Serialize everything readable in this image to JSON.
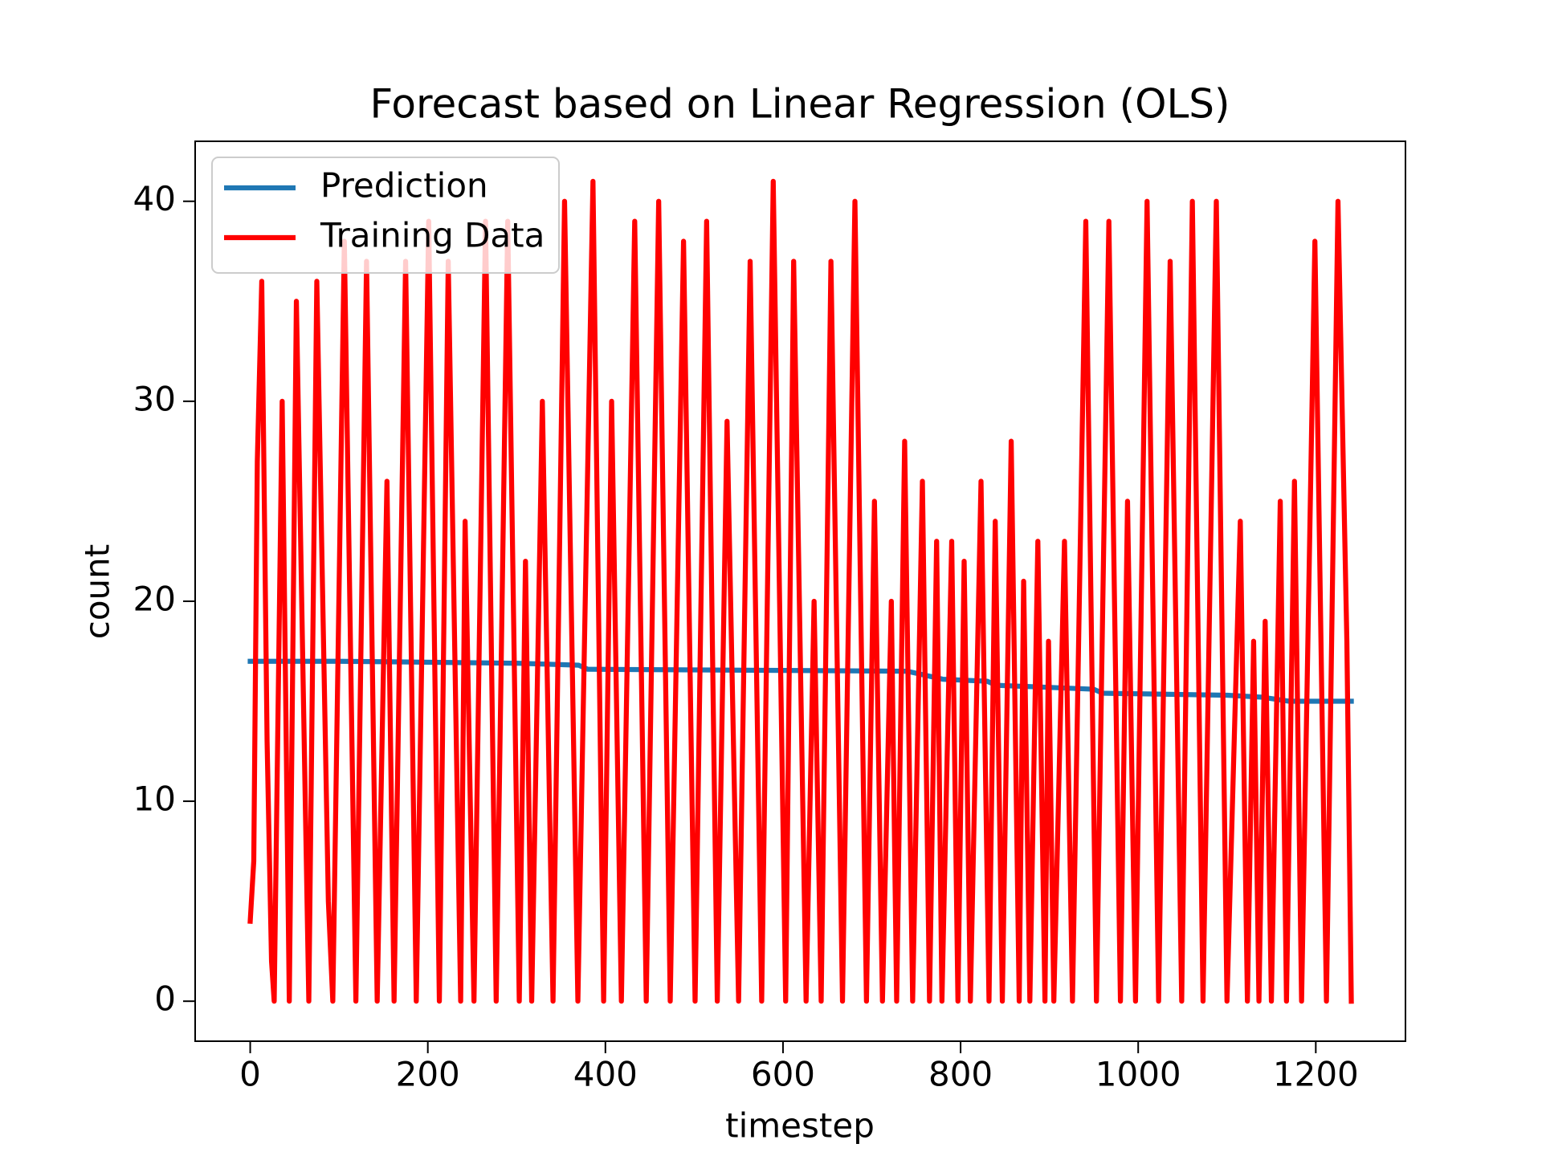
{
  "chart_data": {
    "type": "line",
    "title": "Forecast based on Linear Regression (OLS)",
    "x_label": "timestep",
    "y_label": "count",
    "xlim": [
      -62,
      1301
    ],
    "ylim": [
      -2,
      43
    ],
    "xticks": [
      0,
      200,
      400,
      600,
      800,
      1000,
      1200
    ],
    "yticks": [
      0,
      10,
      20,
      30,
      40
    ],
    "legend": "upper left",
    "series": [
      {
        "name": "Prediction",
        "color": "#1f77b4",
        "x": [
          0,
          100,
          300,
          370,
          380,
          740,
          780,
          830,
          840,
          950,
          960,
          1100,
          1140,
          1170,
          1240
        ],
        "values": [
          17,
          17,
          16.9,
          16.8,
          16.6,
          16.5,
          16.1,
          16.0,
          15.8,
          15.6,
          15.4,
          15.3,
          15.2,
          15.0,
          15.0
        ]
      },
      {
        "name": "Training Data",
        "color": "red",
        "x": [
          0,
          4,
          8,
          13,
          19,
          24,
          27,
          36,
          44,
          52,
          66,
          75,
          88,
          93,
          106,
          119,
          131,
          143,
          154,
          162,
          175,
          187,
          201,
          213,
          223,
          237,
          242,
          252,
          265,
          277,
          290,
          303,
          310,
          317,
          329,
          341,
          354,
          369,
          386,
          398,
          407,
          418,
          433,
          446,
          460,
          473,
          488,
          501,
          514,
          526,
          537,
          550,
          563,
          576,
          589,
          603,
          612,
          626,
          635,
          643,
          654,
          667,
          681,
          694,
          703,
          712,
          722,
          728,
          737,
          746,
          757,
          765,
          773,
          779,
          790,
          797,
          804,
          811,
          823,
          832,
          839,
          847,
          857,
          866,
          871,
          878,
          887,
          895,
          899,
          905,
          917,
          926,
          941,
          953,
          967,
          980,
          988,
          997,
          1010,
          1023,
          1036,
          1049,
          1061,
          1073,
          1088,
          1100,
          1115,
          1123,
          1130,
          1136,
          1143,
          1150,
          1160,
          1167,
          1176,
          1184,
          1199,
          1212,
          1225,
          1235,
          1240
        ],
        "values": [
          4,
          7,
          27,
          36,
          13,
          2,
          0,
          30,
          0,
          35,
          0,
          36,
          5,
          0,
          38,
          0,
          37,
          0,
          26,
          0,
          37,
          0,
          39,
          0,
          37,
          0,
          24,
          0,
          39,
          0,
          39,
          0,
          22,
          0,
          30,
          0,
          40,
          0,
          41,
          0,
          30,
          0,
          39,
          0,
          40,
          0,
          38,
          0,
          39,
          0,
          29,
          0,
          37,
          0,
          41,
          0,
          37,
          0,
          20,
          0,
          37,
          0,
          40,
          0,
          25,
          0,
          20,
          0,
          28,
          0,
          26,
          0,
          23,
          0,
          23,
          0,
          22,
          0,
          26,
          0,
          24,
          0,
          28,
          0,
          21,
          0,
          23,
          0,
          18,
          0,
          23,
          0,
          39,
          0,
          39,
          0,
          25,
          0,
          40,
          0,
          37,
          0,
          40,
          0,
          40,
          0,
          24,
          0,
          18,
          0,
          19,
          0,
          25,
          0,
          26,
          0,
          38,
          0,
          40,
          18,
          0
        ]
      }
    ]
  }
}
